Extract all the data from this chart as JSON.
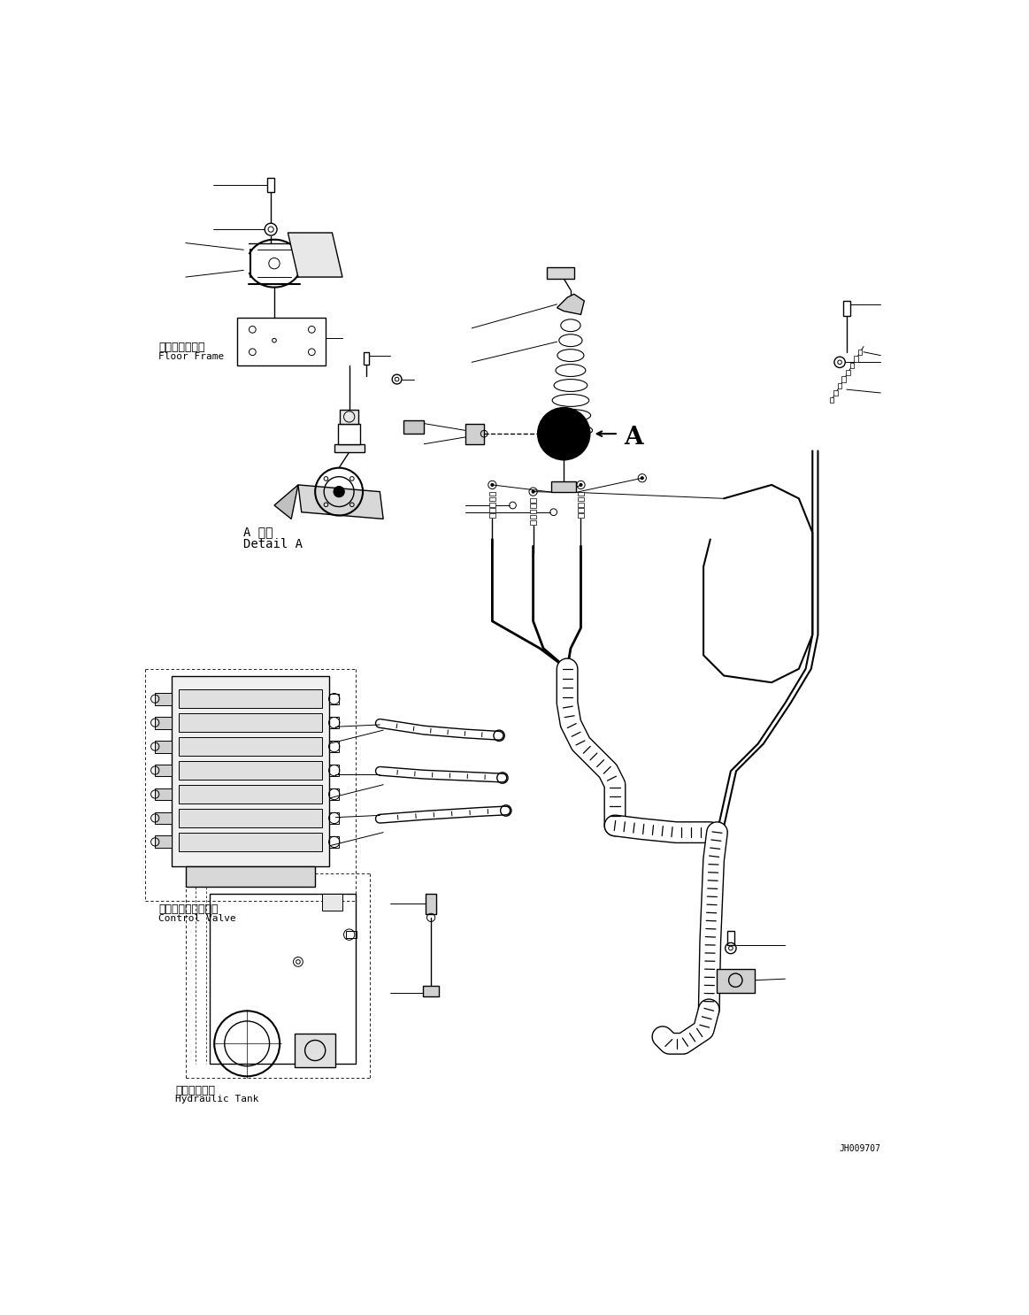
{
  "bg_color": "#ffffff",
  "line_color": "#000000",
  "fig_width": 11.63,
  "fig_height": 14.86,
  "dpi": 100,
  "labels": {
    "floor_frame_jp": "フロアフレーム",
    "floor_frame_en": "Floor Frame",
    "detail_a_jp": "A 詳細",
    "detail_a_en": "Detail A",
    "control_valve_jp": "コントロールバルブ",
    "control_valve_en": "Control Valve",
    "hydraulic_tank_jp": "作動油タンク",
    "hydraulic_tank_en": "Hydraulic Tank",
    "label_a": "A",
    "part_number": "JH009707"
  },
  "font_sizes": {
    "label_jp": 9,
    "label_en": 8,
    "part_number": 7,
    "detail_a": 10
  }
}
